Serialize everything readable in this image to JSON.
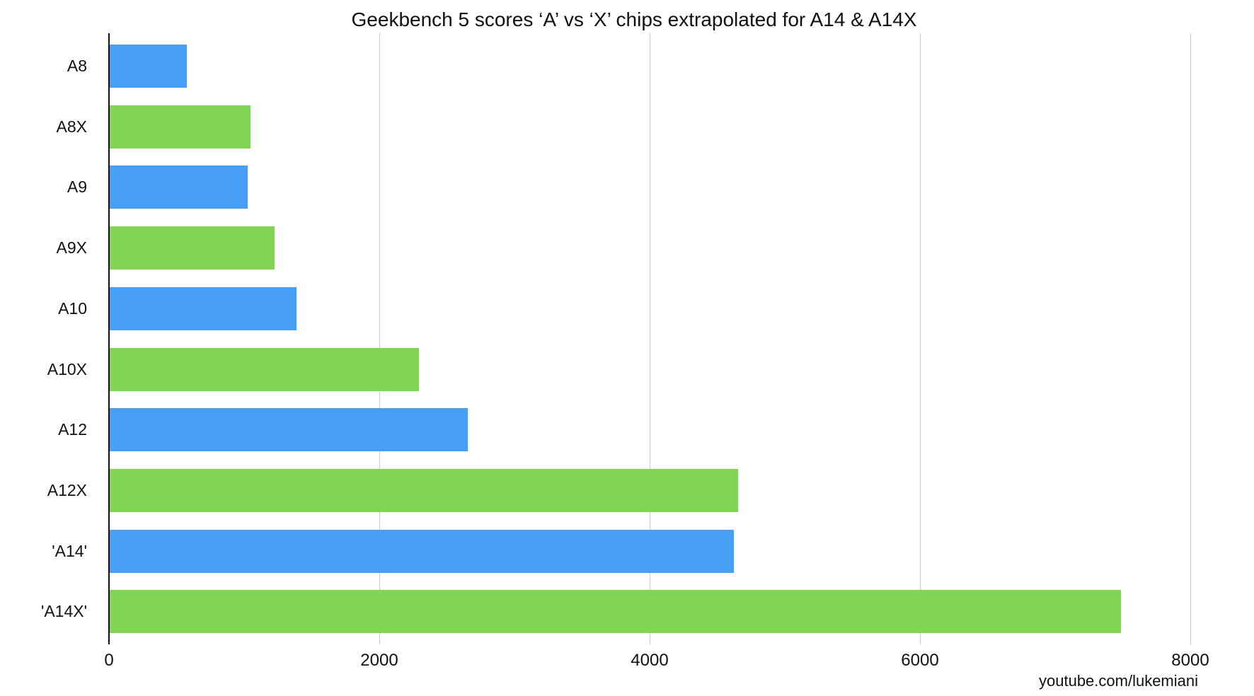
{
  "chart_data": {
    "type": "bar",
    "orientation": "horizontal",
    "title": "Geekbench 5 scores ‘A’ vs ‘X’ chips extrapolated for A14 & A14X",
    "xlabel": "",
    "ylabel": "",
    "xlim": [
      0,
      8000
    ],
    "xticks": [
      0,
      2000,
      4000,
      6000,
      8000
    ],
    "xtick_labels": [
      "0",
      "2000",
      "4000",
      "6000",
      "8000"
    ],
    "grid": true,
    "legend": null,
    "categories": [
      "A8",
      "A8X",
      "A9",
      "A9X",
      "A10",
      "A10X",
      "A12",
      "A12X",
      "'A14'",
      "'A14X'"
    ],
    "values": [
      570,
      1040,
      1020,
      1220,
      1380,
      2290,
      2650,
      4650,
      4620,
      7480
    ],
    "bar_colors": [
      "#479ff5",
      "#82d455",
      "#479ff5",
      "#82d455",
      "#479ff5",
      "#82d455",
      "#479ff5",
      "#82d455",
      "#479ff5",
      "#82d455"
    ],
    "series_colors": {
      "A": "#479ff5",
      "X": "#82d455"
    },
    "annotations": [
      "youtube.com/lukemiani"
    ]
  },
  "watermark": "youtube.com/lukemiani"
}
